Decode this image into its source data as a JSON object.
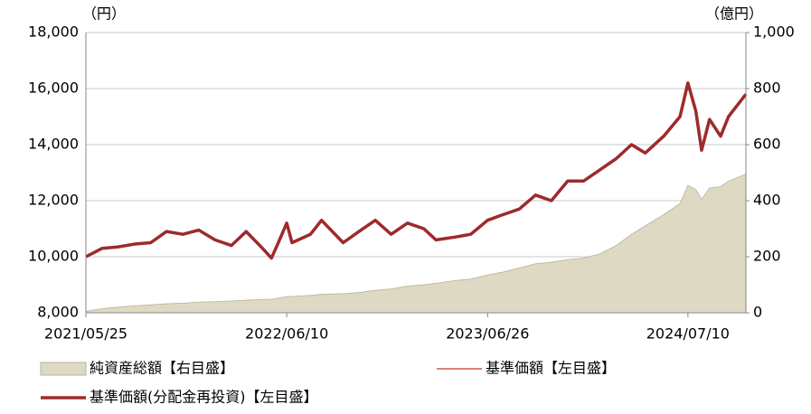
{
  "chart_data": {
    "type": "line",
    "y_unit": "（円）",
    "y2_unit": "（億円）",
    "x": [
      "2021/05/25",
      "2021/06/25",
      "2021/07/25",
      "2021/08/25",
      "2021/09/25",
      "2021/10/25",
      "2021/11/25",
      "2021/12/25",
      "2022/01/25",
      "2022/02/25",
      "2022/03/25",
      "2022/04/25",
      "2022/05/12",
      "2022/05/25",
      "2022/06/10",
      "2022/06/20",
      "2022/07/25",
      "2022/08/15",
      "2022/09/25",
      "2022/10/25",
      "2022/11/25",
      "2022/12/25",
      "2023/01/25",
      "2023/02/25",
      "2023/03/20",
      "2023/04/25",
      "2023/05/25",
      "2023/06/26",
      "2023/07/25",
      "2023/08/25",
      "2023/09/25",
      "2023/10/25",
      "2023/11/25",
      "2023/12/25",
      "2024/01/25",
      "2024/02/25",
      "2024/03/25",
      "2024/04/20",
      "2024/05/25",
      "2024/06/25",
      "2024/07/10",
      "2024/07/25",
      "2024/08/05",
      "2024/08/20",
      "2024/09/10",
      "2024/09/25",
      "2024/10/28"
    ],
    "xlim": [
      "2021/05/25",
      "2024/10/28"
    ],
    "xticks": [
      "2021/05/25",
      "2022/06/10",
      "2023/06/26",
      "2024/07/10"
    ],
    "ylim": [
      8000,
      18000
    ],
    "yticks": [
      {
        "value": 8000,
        "label": "8,000"
      },
      {
        "value": 10000,
        "label": "10,000"
      },
      {
        "value": 12000,
        "label": "12,000"
      },
      {
        "value": 14000,
        "label": "14,000"
      },
      {
        "value": 16000,
        "label": "16,000"
      },
      {
        "value": 18000,
        "label": "18,000"
      }
    ],
    "y2lim": [
      0,
      1000
    ],
    "y2ticks": [
      0,
      200,
      400,
      600,
      800,
      {
        "value": 1000,
        "label": "1,000"
      }
    ],
    "grid": true,
    "series": [
      {
        "name": "純資産総額【右目盛】",
        "type": "area",
        "axis": "y2",
        "color": "#ddd9c3",
        "values": [
          5,
          15,
          20,
          25,
          28,
          32,
          34,
          38,
          40,
          42,
          45,
          48,
          48,
          52,
          58,
          58,
          62,
          66,
          68,
          72,
          80,
          85,
          95,
          100,
          105,
          115,
          120,
          135,
          145,
          160,
          175,
          180,
          190,
          195,
          210,
          240,
          280,
          310,
          350,
          390,
          455,
          440,
          405,
          445,
          450,
          470,
          495
        ]
      },
      {
        "name": "基準価額【左目盛】",
        "type": "line",
        "axis": "y",
        "color": "#c0392b",
        "values": [
          10000,
          10300,
          10350,
          10450,
          10500,
          10900,
          10800,
          10950,
          10600,
          10400,
          10900,
          10300,
          9950,
          10500,
          11200,
          10500,
          10800,
          11300,
          10500,
          10900,
          11300,
          10800,
          11200,
          11000,
          10600,
          10700,
          10800,
          11300,
          11500,
          11700,
          12200,
          12000,
          12700,
          12700,
          13100,
          13500,
          14000,
          13700,
          14300,
          15000,
          16200,
          15200,
          13800,
          14900,
          14300,
          15000,
          15800
        ]
      },
      {
        "name": "基準価額(分配金再投資)【左目盛】",
        "type": "line",
        "axis": "y",
        "color": "#9e2a2b",
        "values": [
          10000,
          10300,
          10350,
          10450,
          10500,
          10900,
          10800,
          10950,
          10600,
          10400,
          10900,
          10300,
          9950,
          10500,
          11200,
          10500,
          10800,
          11300,
          10500,
          10900,
          11300,
          10800,
          11200,
          11000,
          10600,
          10700,
          10800,
          11300,
          11500,
          11700,
          12200,
          12000,
          12700,
          12700,
          13100,
          13500,
          14000,
          13700,
          14300,
          15000,
          16200,
          15200,
          13800,
          14900,
          14300,
          15000,
          15800
        ]
      }
    ]
  }
}
